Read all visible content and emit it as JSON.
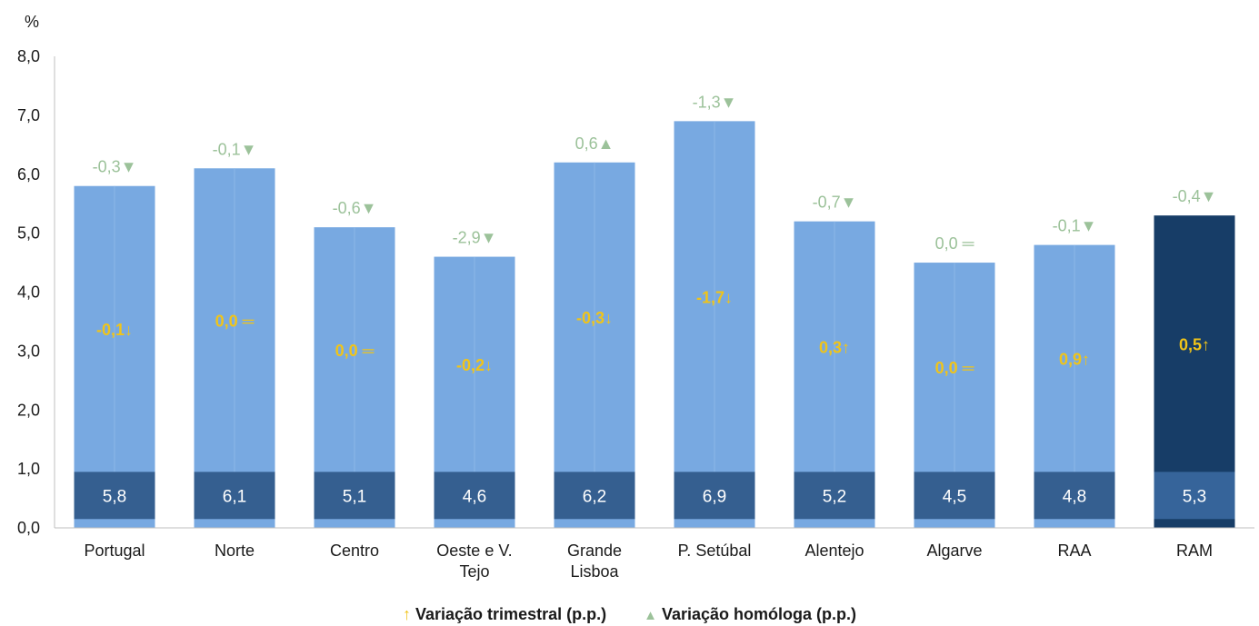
{
  "chart_data": {
    "type": "bar",
    "ylabel": "%",
    "ylim": [
      0,
      8
    ],
    "yticks": [
      "0,0",
      "1,0",
      "2,0",
      "3,0",
      "4,0",
      "5,0",
      "6,0",
      "7,0",
      "8,0"
    ],
    "categories": [
      "Portugal",
      "Norte",
      "Centro",
      "Oeste e V. Tejo",
      "Grande Lisboa",
      "P. Setúbal",
      "Alentejo",
      "Algarve",
      "RAA",
      "RAM"
    ],
    "category_lines": [
      [
        "Portugal"
      ],
      [
        "Norte"
      ],
      [
        "Centro"
      ],
      [
        "Oeste e V.",
        "Tejo"
      ],
      [
        "Grande",
        "Lisboa"
      ],
      [
        "P. Setúbal"
      ],
      [
        "Alentejo"
      ],
      [
        "Algarve"
      ],
      [
        "RAA"
      ],
      [
        "RAM"
      ]
    ],
    "values": [
      5.8,
      6.1,
      5.1,
      4.6,
      6.2,
      6.9,
      5.2,
      4.5,
      4.8,
      5.3
    ],
    "value_labels": [
      "5,8",
      "6,1",
      "5,1",
      "4,6",
      "6,2",
      "6,9",
      "5,2",
      "4,5",
      "4,8",
      "5,3"
    ],
    "quarterly_change_labels": [
      "-0,1↓",
      "0,0 ═",
      "0,0 ═",
      "-0,2↓",
      "-0,3↓",
      "-1,7↓",
      "0,3↑",
      "0,0 ═",
      "0,9↑",
      "0,5↑"
    ],
    "yearly_change_labels": [
      "-0,3▼",
      "-0,1▼",
      "-0,6▼",
      "-2,9▼",
      "0,6▲",
      "-1,3▼",
      "-0,7▼",
      "0,0 ═",
      "-0,1▼",
      "-0,4▼"
    ],
    "highlight_category": "RAM",
    "legend": [
      "Variação trimestral (p.p.)",
      "Variação homóloga (p.p.)"
    ],
    "legend_symbols": [
      "↑",
      "▲"
    ],
    "colors": {
      "bar": "#78a9e1",
      "bar_highlight": "#173d67",
      "value_box": "#355f90",
      "value_box_highlight": "#36649a",
      "base_strip": "#78a9e1",
      "base_strip_highlight": "#173d67",
      "quarterly_text": "#f0c419",
      "yearly_text": "#9cc29a",
      "axis": "#bfbfbf",
      "text": "#1a1a1a"
    }
  }
}
